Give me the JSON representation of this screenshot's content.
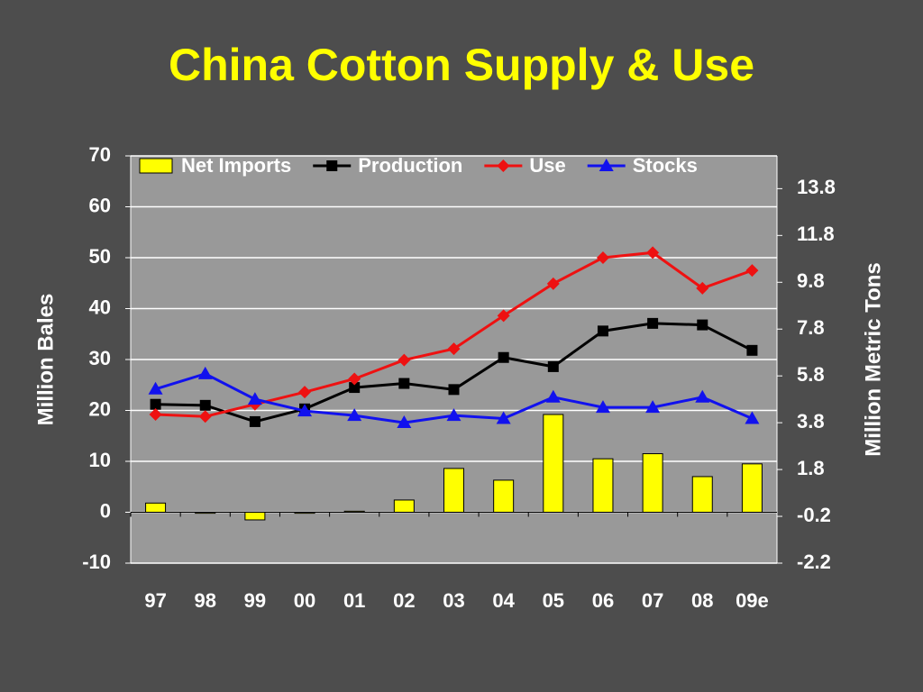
{
  "chart_data": {
    "type": "bar-line",
    "title": "China Cotton Supply & Use",
    "y_label": "Million Bales",
    "y2_label": "Million Metric Tons",
    "categories": [
      "97",
      "98",
      "99",
      "00",
      "01",
      "02",
      "03",
      "04",
      "05",
      "06",
      "07",
      "08",
      "09e"
    ],
    "ylim": [
      -10,
      70
    ],
    "yticks": [
      -10,
      0,
      10,
      20,
      30,
      40,
      50,
      60,
      70
    ],
    "y2lim": [
      -2.2,
      15.2
    ],
    "y2ticks": [
      -2.2,
      -0.2,
      1.8,
      3.8,
      5.8,
      7.8,
      9.8,
      11.8,
      13.8
    ],
    "grid": true,
    "legend": "top",
    "series": [
      {
        "name": "Net Imports",
        "kind": "bar",
        "color": "#ffff00",
        "values": [
          1.8,
          -0.2,
          -1.5,
          -0.2,
          0.2,
          2.4,
          8.6,
          6.3,
          19.2,
          10.5,
          11.5,
          7.0,
          9.5
        ]
      },
      {
        "name": "Production",
        "kind": "line",
        "marker": "square",
        "color": "#000000",
        "values": [
          21.2,
          21.0,
          17.8,
          20.3,
          24.5,
          25.3,
          24.1,
          30.4,
          28.6,
          35.6,
          37.1,
          36.8,
          31.8
        ]
      },
      {
        "name": "Use",
        "kind": "line",
        "marker": "diamond",
        "color": "#ee1111",
        "values": [
          19.2,
          18.8,
          21.2,
          23.6,
          26.2,
          29.9,
          32.1,
          38.6,
          44.9,
          50.0,
          51.0,
          44.0,
          47.5
        ]
      },
      {
        "name": "Stocks",
        "kind": "line",
        "marker": "triangle",
        "color": "#1111ee",
        "values": [
          24.2,
          27.2,
          22.2,
          19.9,
          19.0,
          17.6,
          19.0,
          18.4,
          22.6,
          20.6,
          20.6,
          22.6,
          18.4
        ]
      }
    ]
  }
}
